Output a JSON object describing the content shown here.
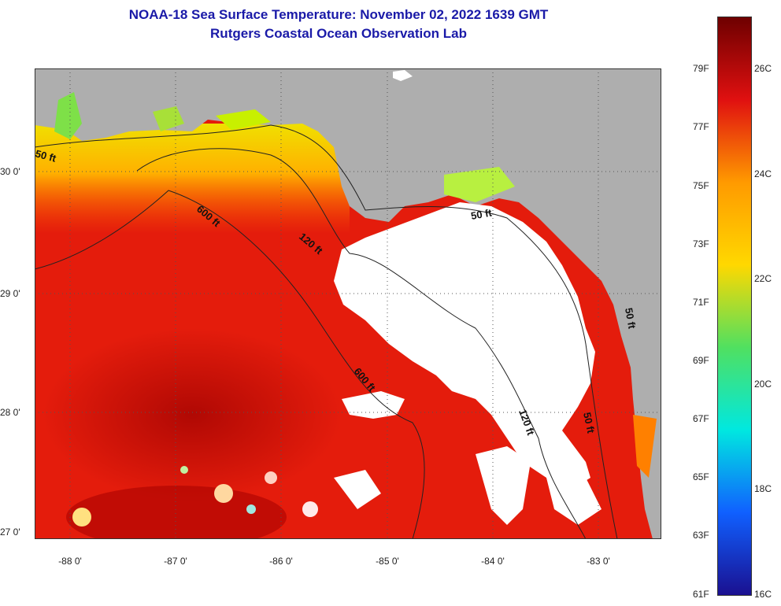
{
  "header": {
    "title": "NOAA-18 Sea Surface Temperature:  November 02, 2022 1639 GMT",
    "subtitle": "Rutgers Coastal Ocean Observation Lab"
  },
  "map": {
    "lat_labels": [
      "30 0'",
      "29 0'",
      "28 0'",
      "27 0'"
    ],
    "lon_labels": [
      "-88 0'",
      "-87 0'",
      "-86 0'",
      "-85 0'",
      "-84 0'",
      "-83 0'"
    ],
    "contour_labels": {
      "c50_west": "50 ft",
      "c600_a": "600 ft",
      "c120_a": "120 ft",
      "c50_east": "50 ft",
      "c600_b": "600 ft",
      "c120_b": "120 ft",
      "c50_south": "50 ft",
      "c50_coast": "50 ft"
    },
    "colors": {
      "land": "#aeaeae",
      "cloud": "#ffffff",
      "warm": "#e81808",
      "cool": "#f0d800"
    }
  },
  "colorbar": {
    "fahrenheit": [
      "79F",
      "77F",
      "75F",
      "73F",
      "71F",
      "69F",
      "67F",
      "65F",
      "63F",
      "61F"
    ],
    "celsius": [
      "26C",
      "24C",
      "22C",
      "20C",
      "18C",
      "16C"
    ],
    "colors": [
      "#6e0000",
      "#e01010",
      "#ff9a00",
      "#ffd800",
      "#50e060",
      "#00e8e0",
      "#1060ff",
      "#1a1090"
    ]
  }
}
